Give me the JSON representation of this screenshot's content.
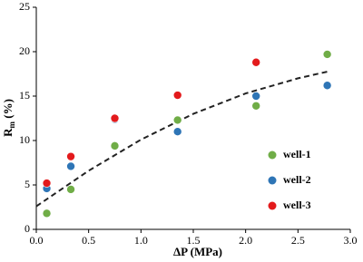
{
  "chart_data": {
    "type": "scatter",
    "xlabel": "ΔP (MPa)",
    "ylabel": [
      "R",
      "m",
      " (%)"
    ],
    "xlim": [
      0,
      3
    ],
    "ylim": [
      0,
      25
    ],
    "xticks": [
      {
        "value": 0,
        "label": "0.0"
      },
      0.5,
      {
        "value": 1,
        "label": "1.0"
      },
      1.5,
      {
        "value": 2,
        "label": "2.0"
      },
      2.5,
      {
        "value": 3,
        "label": "3.0"
      }
    ],
    "yticks": [
      0,
      5,
      10,
      15,
      20,
      25
    ],
    "legend": "lower right",
    "series": [
      {
        "name": "well-1",
        "color": "#70ad47",
        "x": [
          0.1,
          0.33,
          0.75,
          1.35,
          2.1,
          2.78
        ],
        "values": [
          1.8,
          4.5,
          9.4,
          12.3,
          13.9,
          19.7
        ]
      },
      {
        "name": "well-2",
        "color": "#2e75b6",
        "x": [
          0.1,
          0.33,
          0.75,
          1.35,
          2.1,
          2.78
        ],
        "values": [
          4.6,
          7.1,
          12.4,
          11.0,
          15.0,
          16.2
        ]
      },
      {
        "name": "well-3",
        "color": "#e31a1c",
        "x": [
          0.1,
          0.33,
          0.75,
          1.35,
          2.1
        ],
        "values": [
          5.2,
          8.2,
          12.5,
          15.1,
          18.8
        ]
      }
    ],
    "fit": {
      "color": "#222222",
      "x": [
        0,
        0.5,
        1,
        1.5,
        2,
        2.5,
        2.8
      ],
      "values": [
        2.6,
        6.6,
        10.1,
        13.0,
        15.3,
        17.0,
        17.8
      ]
    }
  }
}
